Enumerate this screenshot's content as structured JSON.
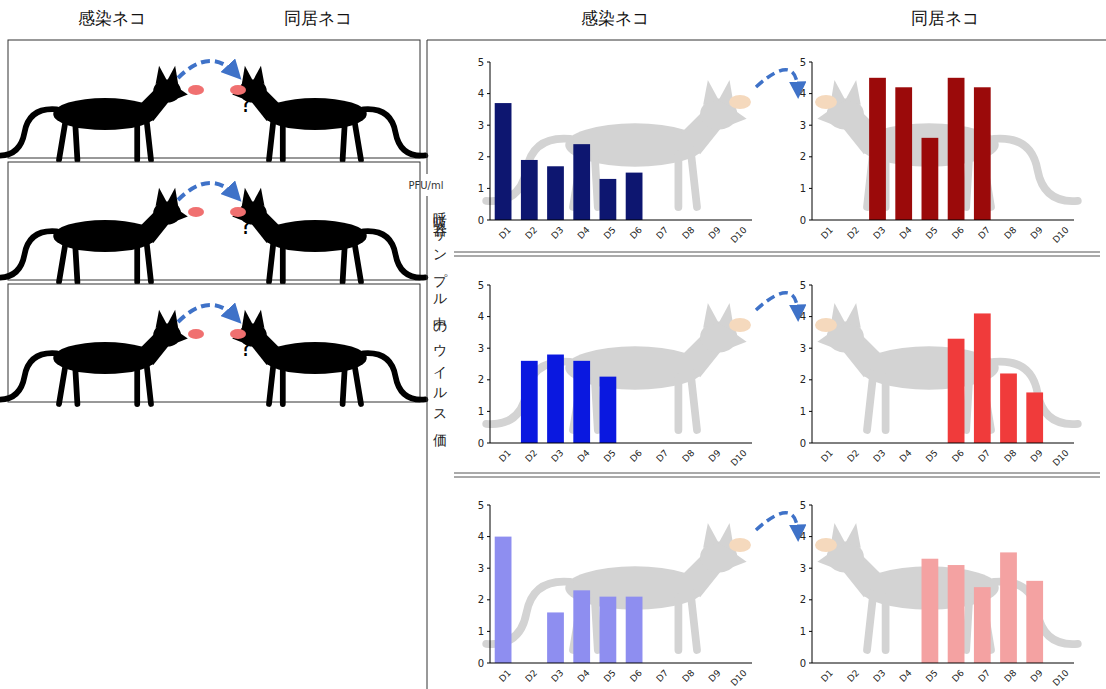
{
  "diagram": {
    "column_titles": [
      "感染ネコ",
      "同居ネコ"
    ],
    "unknown": "?"
  },
  "figure": {
    "column_titles": [
      "感染ネコ",
      "同居ネコ"
    ],
    "y_unit": "PFU/ml",
    "y_title": "呼吸器サンプル中のウイルス価"
  },
  "chart_data": [
    {
      "type": "bar",
      "categories": [
        "D1",
        "D2",
        "D3",
        "D4",
        "D5",
        "D6",
        "D7",
        "D8",
        "D9",
        "D10"
      ],
      "values": [
        3.7,
        1.9,
        1.7,
        2.4,
        1.3,
        1.5,
        null,
        null,
        null,
        null
      ],
      "color": "#0d1670",
      "ylim": [
        0,
        5
      ],
      "yticks": [
        0,
        1,
        2,
        3,
        4,
        5
      ],
      "grid": false
    },
    {
      "type": "bar",
      "categories": [
        "D1",
        "D2",
        "D3",
        "D4",
        "D5",
        "D6",
        "D7",
        "D8",
        "D9",
        "D10"
      ],
      "values": [
        null,
        null,
        4.5,
        4.2,
        2.6,
        4.5,
        4.2,
        null,
        null,
        null
      ],
      "color": "#9b0a0a",
      "ylim": [
        0,
        5
      ],
      "yticks": [
        0,
        1,
        2,
        3,
        4,
        5
      ],
      "grid": false
    },
    {
      "type": "bar",
      "categories": [
        "D1",
        "D2",
        "D3",
        "D4",
        "D5",
        "D6",
        "D7",
        "D8",
        "D9",
        "D10"
      ],
      "values": [
        null,
        2.6,
        2.8,
        2.6,
        2.1,
        null,
        null,
        null,
        null,
        null
      ],
      "color": "#0a18e0",
      "ylim": [
        0,
        5
      ],
      "yticks": [
        0,
        1,
        2,
        3,
        4,
        5
      ],
      "grid": false
    },
    {
      "type": "bar",
      "categories": [
        "D1",
        "D2",
        "D3",
        "D4",
        "D5",
        "D6",
        "D7",
        "D8",
        "D9",
        "D10"
      ],
      "values": [
        null,
        null,
        null,
        null,
        null,
        3.3,
        4.1,
        2.2,
        1.6,
        null
      ],
      "color": "#f03b3b",
      "ylim": [
        0,
        5
      ],
      "yticks": [
        0,
        1,
        2,
        3,
        4,
        5
      ],
      "grid": false
    },
    {
      "type": "bar",
      "categories": [
        "D1",
        "D2",
        "D3",
        "D4",
        "D5",
        "D6",
        "D7",
        "D8",
        "D9",
        "D10"
      ],
      "values": [
        4.0,
        null,
        1.6,
        2.3,
        2.1,
        2.1,
        null,
        null,
        null,
        null
      ],
      "color": "#8e8ef0",
      "ylim": [
        0,
        5
      ],
      "yticks": [
        0,
        1,
        2,
        3,
        4,
        5
      ],
      "grid": false
    },
    {
      "type": "bar",
      "categories": [
        "D1",
        "D2",
        "D3",
        "D4",
        "D5",
        "D6",
        "D7",
        "D8",
        "D9",
        "D10"
      ],
      "values": [
        null,
        null,
        null,
        null,
        3.3,
        3.1,
        2.4,
        3.5,
        2.6,
        null
      ],
      "color": "#f4a2a2",
      "ylim": [
        0,
        5
      ],
      "yticks": [
        0,
        1,
        2,
        3,
        4,
        5
      ],
      "grid": false
    }
  ]
}
